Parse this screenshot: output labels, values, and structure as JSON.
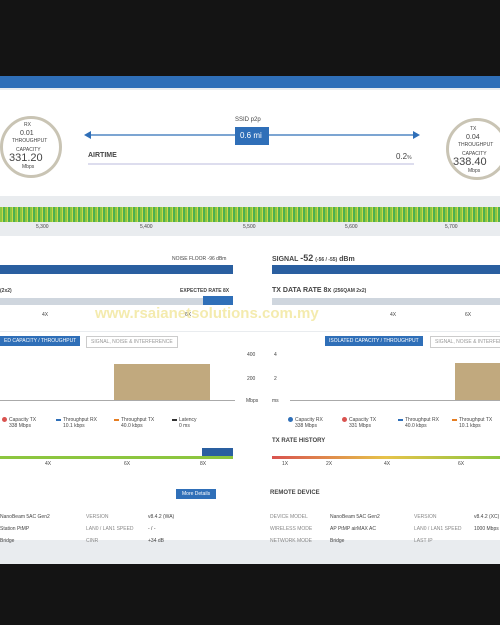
{
  "header": {
    "rx": {
      "label": "RX",
      "throughput": "0.01",
      "throughput_label": "THROUGHPUT",
      "capacity_label": "CAPACITY",
      "capacity": "331.20",
      "unit": "Mbps"
    },
    "tx": {
      "label": "TX",
      "throughput": "0.04",
      "throughput_label": "THROUGHPUT",
      "capacity_label": "CAPACITY",
      "capacity": "338.40",
      "unit": "Mbps"
    },
    "ssid": "SSID p2p",
    "distance": "0.6 mi",
    "airtime_label": "AIRTIME",
    "airtime": "0.2",
    "airtime_unit": "%"
  },
  "spectrum": {
    "ticks": [
      "5,300",
      "5,400",
      "5,500",
      "5,600",
      "5,700"
    ]
  },
  "radio": {
    "noise_floor": "NOISE FLOOR -96 dBm",
    "signal_label": "SIGNAL",
    "signal": "-52",
    "signal_detail": "(-56 / -55)",
    "signal_unit": "dBm",
    "left_chain": "(2x2)",
    "expected_rate": "EXPECTED RATE 8X",
    "tx_data_rate": "TX DATA RATE 8x",
    "tx_data_detail": "(256QAM 2x2)",
    "left_ticks": [
      "4X",
      "6X"
    ],
    "right_ticks": [
      "4X",
      "6X"
    ]
  },
  "watermark": "www.rsaianetsolutions.com.my",
  "tabs": {
    "left": [
      "ED CAPACITY / THROUGHPUT",
      "SIGNAL, NOISE & INTERFERENCE"
    ],
    "right": [
      "ISOLATED CAPACITY / THROUGHPUT",
      "SIGNAL, NOISE & INTERFERENCE"
    ]
  },
  "charts": {
    "left_axis": [
      "400",
      "200",
      "Mbps"
    ],
    "right_axis": [
      "4",
      "2",
      "ms"
    ],
    "left_legend": [
      [
        "Capacity TX",
        "338 Mbps"
      ],
      [
        "Throughput RX",
        "10.1 kbps"
      ],
      [
        "Throughput TX",
        "40.0 kbps"
      ],
      [
        "Latency",
        "0 ms"
      ]
    ],
    "right_legend": [
      [
        "Capacity RX",
        "338 Mbps"
      ],
      [
        "Capacity TX",
        "331 Mbps"
      ],
      [
        "Throughput RX",
        "40.0 kbps"
      ],
      [
        "Throughput TX",
        "10.1 kbps"
      ]
    ]
  },
  "history": {
    "title": "TX RATE HISTORY",
    "left_ticks": [
      "4X",
      "6X",
      "8X"
    ],
    "right_ticks": [
      "1X",
      "2X",
      "4X",
      "6X"
    ]
  },
  "more_details": "More Details",
  "remote": {
    "title": "REMOTE DEVICE"
  },
  "local_table": [
    [
      "NanoBeam 5AC Gen2",
      "VERSION",
      "v8.4.2 (WA)"
    ],
    [
      "Station PtMP",
      "LAN0 / LAN1 SPEED",
      "- / -"
    ],
    [
      "Bridge",
      "CINR",
      "+34 dB"
    ]
  ],
  "remote_table": [
    [
      "DEVICE MODEL",
      "NanoBeam 5AC Gen2",
      "VERSION",
      "v8.4.2 (XC)"
    ],
    [
      "WIRELESS MODE",
      "AP PtMP airMAX AC",
      "LAN0 / LAN1 SPEED",
      "1000 Mbps"
    ],
    [
      "NETWORK MODE",
      "Bridge",
      "LAST IP",
      ""
    ]
  ]
}
